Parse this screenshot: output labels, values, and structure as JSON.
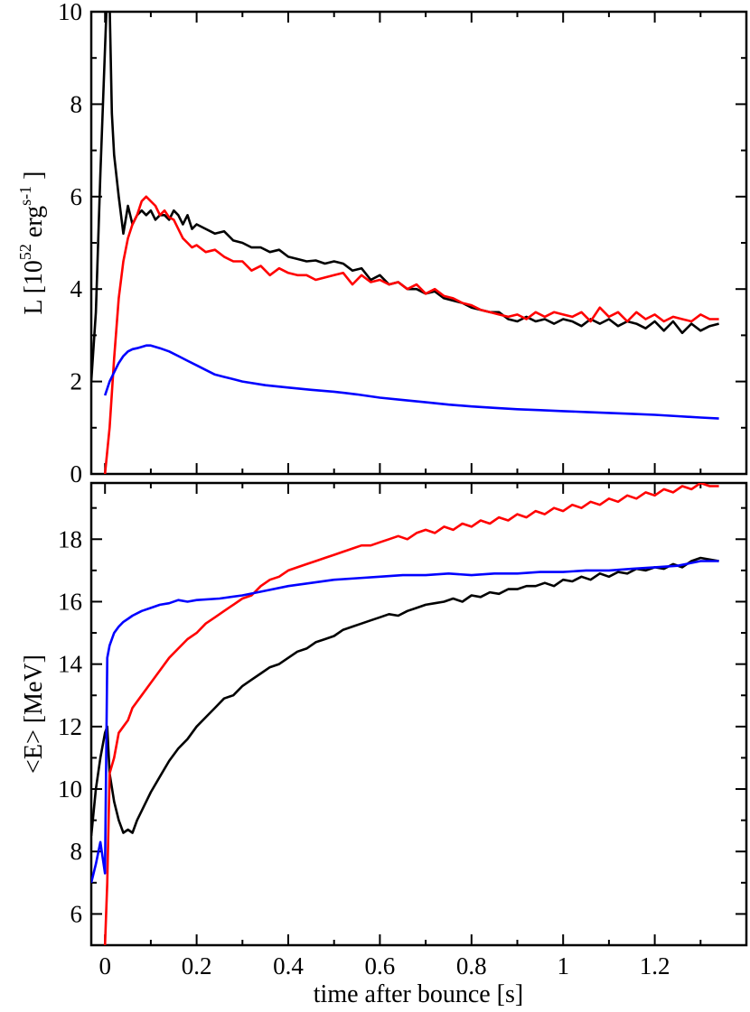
{
  "chart_data": [
    {
      "type": "line",
      "panel": "top",
      "ylabel": "L [10^52 erg s^-1]",
      "ylabel_parts": {
        "base": "L [10",
        "exp1": "52",
        "mid": " erg",
        "exp2": "s-1",
        "end": " ]"
      },
      "xlim": [
        -0.03,
        1.4
      ],
      "ylim": [
        0,
        10
      ],
      "yticks": [
        "0",
        "2",
        "4",
        "6",
        "8",
        "10"
      ],
      "series": [
        {
          "color": "#000000",
          "x": [
            -0.03,
            -0.02,
            -0.01,
            0.0,
            0.005,
            0.01,
            0.015,
            0.02,
            0.03,
            0.04,
            0.05,
            0.06,
            0.07,
            0.08,
            0.09,
            0.1,
            0.11,
            0.12,
            0.13,
            0.14,
            0.15,
            0.16,
            0.17,
            0.18,
            0.19,
            0.2,
            0.22,
            0.24,
            0.26,
            0.28,
            0.3,
            0.32,
            0.34,
            0.36,
            0.38,
            0.4,
            0.42,
            0.44,
            0.46,
            0.48,
            0.5,
            0.52,
            0.54,
            0.56,
            0.58,
            0.6,
            0.62,
            0.64,
            0.66,
            0.68,
            0.7,
            0.72,
            0.74,
            0.76,
            0.78,
            0.8,
            0.82,
            0.84,
            0.86,
            0.88,
            0.9,
            0.92,
            0.94,
            0.96,
            0.98,
            1.0,
            1.02,
            1.04,
            1.06,
            1.08,
            1.1,
            1.12,
            1.14,
            1.16,
            1.18,
            1.2,
            1.22,
            1.24,
            1.26,
            1.28,
            1.3,
            1.32,
            1.34
          ],
          "values": [
            2.0,
            3.5,
            6.5,
            9.2,
            10.5,
            10.2,
            7.8,
            6.9,
            6.0,
            5.2,
            5.8,
            5.4,
            5.6,
            5.7,
            5.6,
            5.7,
            5.5,
            5.6,
            5.6,
            5.5,
            5.7,
            5.6,
            5.4,
            5.6,
            5.3,
            5.4,
            5.3,
            5.2,
            5.25,
            5.05,
            5.0,
            4.9,
            4.9,
            4.8,
            4.85,
            4.7,
            4.65,
            4.6,
            4.62,
            4.55,
            4.6,
            4.55,
            4.4,
            4.45,
            4.2,
            4.3,
            4.1,
            4.15,
            4.0,
            4.0,
            3.9,
            3.95,
            3.8,
            3.75,
            3.7,
            3.6,
            3.55,
            3.5,
            3.5,
            3.35,
            3.3,
            3.4,
            3.3,
            3.35,
            3.25,
            3.35,
            3.3,
            3.2,
            3.35,
            3.25,
            3.35,
            3.2,
            3.3,
            3.25,
            3.15,
            3.3,
            3.1,
            3.3,
            3.05,
            3.25,
            3.1,
            3.2,
            3.25
          ]
        },
        {
          "color": "#ff0000",
          "x": [
            0.0,
            0.01,
            0.02,
            0.03,
            0.04,
            0.05,
            0.06,
            0.07,
            0.08,
            0.09,
            0.1,
            0.11,
            0.12,
            0.13,
            0.14,
            0.15,
            0.16,
            0.17,
            0.18,
            0.19,
            0.2,
            0.22,
            0.24,
            0.26,
            0.28,
            0.3,
            0.32,
            0.34,
            0.36,
            0.38,
            0.4,
            0.42,
            0.44,
            0.46,
            0.48,
            0.5,
            0.52,
            0.54,
            0.56,
            0.58,
            0.6,
            0.62,
            0.64,
            0.66,
            0.68,
            0.7,
            0.72,
            0.74,
            0.76,
            0.78,
            0.8,
            0.82,
            0.84,
            0.86,
            0.88,
            0.9,
            0.92,
            0.94,
            0.96,
            0.98,
            1.0,
            1.02,
            1.04,
            1.06,
            1.08,
            1.1,
            1.12,
            1.14,
            1.16,
            1.18,
            1.2,
            1.22,
            1.24,
            1.26,
            1.28,
            1.3,
            1.32,
            1.34
          ],
          "values": [
            0.0,
            1.0,
            2.5,
            3.8,
            4.6,
            5.1,
            5.4,
            5.6,
            5.9,
            6.0,
            5.9,
            5.8,
            5.6,
            5.7,
            5.55,
            5.5,
            5.3,
            5.1,
            5.0,
            4.9,
            4.95,
            4.8,
            4.85,
            4.7,
            4.6,
            4.6,
            4.4,
            4.5,
            4.3,
            4.45,
            4.35,
            4.3,
            4.3,
            4.2,
            4.25,
            4.3,
            4.35,
            4.1,
            4.3,
            4.15,
            4.2,
            4.1,
            4.15,
            4.0,
            4.1,
            3.9,
            4.0,
            3.85,
            3.8,
            3.7,
            3.65,
            3.55,
            3.5,
            3.45,
            3.4,
            3.45,
            3.35,
            3.5,
            3.4,
            3.5,
            3.45,
            3.4,
            3.5,
            3.3,
            3.6,
            3.4,
            3.5,
            3.3,
            3.5,
            3.35,
            3.45,
            3.3,
            3.4,
            3.35,
            3.3,
            3.45,
            3.35,
            3.35
          ]
        },
        {
          "color": "#0000ff",
          "x": [
            0.0,
            0.01,
            0.02,
            0.03,
            0.04,
            0.05,
            0.06,
            0.07,
            0.08,
            0.09,
            0.1,
            0.12,
            0.14,
            0.16,
            0.18,
            0.2,
            0.22,
            0.24,
            0.26,
            0.28,
            0.3,
            0.35,
            0.4,
            0.45,
            0.5,
            0.55,
            0.6,
            0.65,
            0.7,
            0.75,
            0.8,
            0.85,
            0.9,
            0.95,
            1.0,
            1.05,
            1.1,
            1.15,
            1.2,
            1.25,
            1.3,
            1.34
          ],
          "values": [
            1.7,
            2.0,
            2.2,
            2.4,
            2.55,
            2.65,
            2.7,
            2.72,
            2.75,
            2.78,
            2.78,
            2.72,
            2.65,
            2.55,
            2.45,
            2.35,
            2.25,
            2.15,
            2.1,
            2.05,
            2.0,
            1.92,
            1.87,
            1.82,
            1.78,
            1.72,
            1.65,
            1.6,
            1.55,
            1.5,
            1.46,
            1.43,
            1.4,
            1.38,
            1.36,
            1.34,
            1.32,
            1.3,
            1.28,
            1.25,
            1.22,
            1.2
          ]
        }
      ]
    },
    {
      "type": "line",
      "panel": "bottom",
      "xlabel": "time after bounce [s]",
      "ylabel": "<E> [MeV]",
      "xlim": [
        -0.03,
        1.4
      ],
      "ylim": [
        5,
        19.8
      ],
      "xticks": [
        "0",
        "0.2",
        "0.4",
        "0.6",
        "0.8",
        "1",
        "1.2"
      ],
      "yticks": [
        "6",
        "8",
        "10",
        "12",
        "14",
        "16",
        "18"
      ],
      "series": [
        {
          "color": "#000000",
          "x": [
            -0.03,
            -0.02,
            -0.01,
            0.0,
            0.005,
            0.01,
            0.02,
            0.03,
            0.04,
            0.05,
            0.06,
            0.07,
            0.08,
            0.09,
            0.1,
            0.12,
            0.14,
            0.16,
            0.18,
            0.2,
            0.22,
            0.24,
            0.26,
            0.28,
            0.3,
            0.32,
            0.34,
            0.36,
            0.38,
            0.4,
            0.42,
            0.44,
            0.46,
            0.48,
            0.5,
            0.52,
            0.54,
            0.56,
            0.58,
            0.6,
            0.62,
            0.64,
            0.66,
            0.68,
            0.7,
            0.72,
            0.74,
            0.76,
            0.78,
            0.8,
            0.82,
            0.84,
            0.86,
            0.88,
            0.9,
            0.92,
            0.94,
            0.96,
            0.98,
            1.0,
            1.02,
            1.04,
            1.06,
            1.08,
            1.1,
            1.12,
            1.14,
            1.16,
            1.18,
            1.2,
            1.22,
            1.24,
            1.26,
            1.28,
            1.3,
            1.32,
            1.34
          ],
          "values": [
            8.5,
            10.0,
            11.0,
            11.8,
            12.0,
            10.5,
            9.6,
            9.0,
            8.6,
            8.7,
            8.6,
            9.0,
            9.3,
            9.6,
            9.9,
            10.4,
            10.9,
            11.3,
            11.6,
            12.0,
            12.3,
            12.6,
            12.9,
            13.0,
            13.3,
            13.5,
            13.7,
            13.9,
            14.0,
            14.2,
            14.4,
            14.5,
            14.7,
            14.8,
            14.9,
            15.1,
            15.2,
            15.3,
            15.4,
            15.5,
            15.6,
            15.55,
            15.7,
            15.8,
            15.9,
            15.95,
            16.0,
            16.1,
            16.0,
            16.2,
            16.15,
            16.3,
            16.25,
            16.4,
            16.4,
            16.5,
            16.5,
            16.6,
            16.5,
            16.7,
            16.65,
            16.8,
            16.7,
            16.9,
            16.8,
            16.95,
            16.9,
            17.05,
            17.0,
            17.1,
            17.05,
            17.2,
            17.1,
            17.3,
            17.4,
            17.35,
            17.3
          ]
        },
        {
          "color": "#ff0000",
          "x": [
            0.0,
            0.005,
            0.01,
            0.02,
            0.03,
            0.04,
            0.05,
            0.06,
            0.08,
            0.1,
            0.12,
            0.14,
            0.16,
            0.18,
            0.2,
            0.22,
            0.24,
            0.26,
            0.28,
            0.3,
            0.32,
            0.34,
            0.36,
            0.38,
            0.4,
            0.42,
            0.44,
            0.46,
            0.48,
            0.5,
            0.52,
            0.54,
            0.56,
            0.58,
            0.6,
            0.62,
            0.64,
            0.66,
            0.68,
            0.7,
            0.72,
            0.74,
            0.76,
            0.78,
            0.8,
            0.82,
            0.84,
            0.86,
            0.88,
            0.9,
            0.92,
            0.94,
            0.96,
            0.98,
            1.0,
            1.02,
            1.04,
            1.06,
            1.08,
            1.1,
            1.12,
            1.14,
            1.16,
            1.18,
            1.2,
            1.22,
            1.24,
            1.26,
            1.28,
            1.3,
            1.32,
            1.34
          ],
          "values": [
            5.0,
            7.0,
            10.5,
            11.0,
            11.8,
            12.0,
            12.2,
            12.6,
            13.0,
            13.4,
            13.8,
            14.2,
            14.5,
            14.8,
            15.0,
            15.3,
            15.5,
            15.7,
            15.9,
            16.1,
            16.2,
            16.5,
            16.7,
            16.8,
            17.0,
            17.1,
            17.2,
            17.3,
            17.4,
            17.5,
            17.6,
            17.7,
            17.8,
            17.8,
            17.9,
            18.0,
            18.1,
            18.0,
            18.2,
            18.3,
            18.2,
            18.4,
            18.3,
            18.5,
            18.4,
            18.6,
            18.5,
            18.7,
            18.6,
            18.8,
            18.7,
            18.9,
            18.8,
            19.0,
            18.9,
            19.1,
            19.0,
            19.2,
            19.1,
            19.3,
            19.2,
            19.4,
            19.3,
            19.5,
            19.4,
            19.6,
            19.5,
            19.7,
            19.6,
            19.8,
            19.7,
            19.7
          ]
        },
        {
          "color": "#0000ff",
          "x": [
            -0.03,
            -0.02,
            -0.01,
            0.0,
            0.005,
            0.01,
            0.02,
            0.03,
            0.04,
            0.05,
            0.06,
            0.08,
            0.1,
            0.12,
            0.14,
            0.16,
            0.18,
            0.2,
            0.25,
            0.3,
            0.35,
            0.4,
            0.45,
            0.5,
            0.55,
            0.6,
            0.65,
            0.7,
            0.75,
            0.8,
            0.85,
            0.9,
            0.95,
            1.0,
            1.05,
            1.1,
            1.15,
            1.2,
            1.25,
            1.3,
            1.34
          ],
          "values": [
            7.0,
            7.6,
            8.3,
            7.3,
            14.2,
            14.6,
            15.0,
            15.2,
            15.35,
            15.45,
            15.55,
            15.7,
            15.8,
            15.9,
            15.95,
            16.05,
            16.0,
            16.05,
            16.1,
            16.2,
            16.35,
            16.5,
            16.6,
            16.7,
            16.75,
            16.8,
            16.85,
            16.85,
            16.9,
            16.85,
            16.9,
            16.9,
            16.95,
            16.95,
            17.0,
            17.0,
            17.05,
            17.1,
            17.15,
            17.3,
            17.3
          ]
        }
      ]
    }
  ]
}
